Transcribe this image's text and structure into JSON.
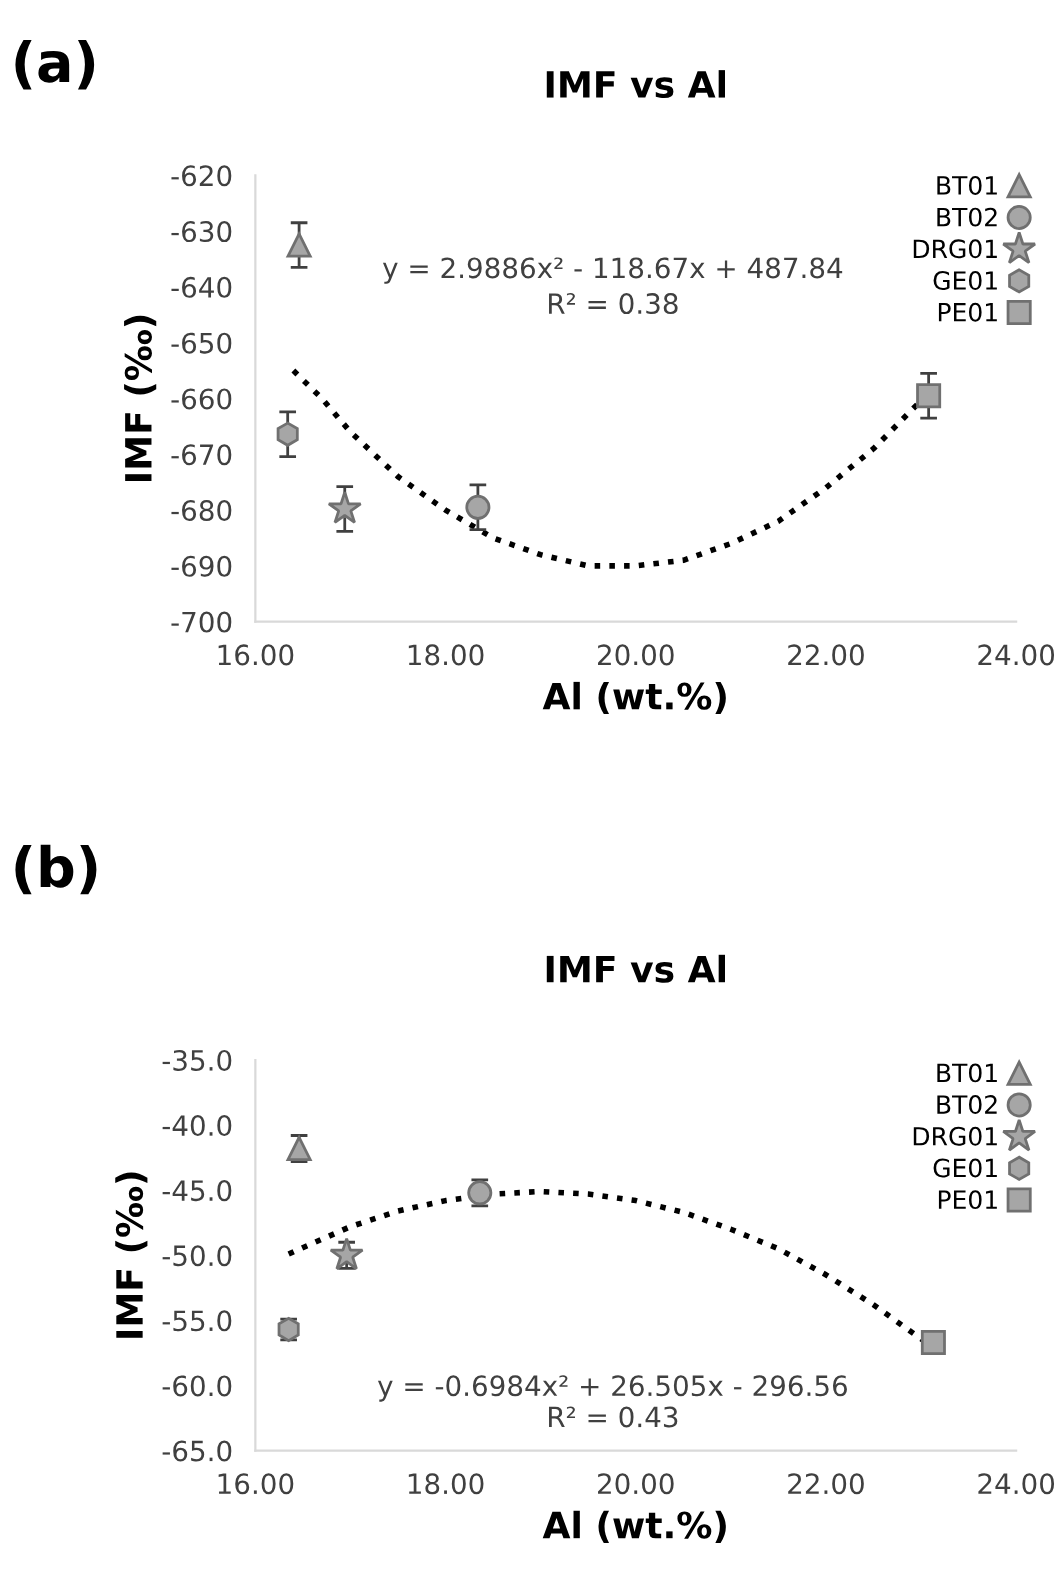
{
  "chart_data": [
    {
      "type": "scatter",
      "title": "IMF vs Al",
      "xlabel": "Al (wt.%)",
      "ylabel": "IMF (‰)",
      "annotations": [
        "(a)",
        "y = 2.9886x² - 118.67x + 487.84",
        "R² = 0.38"
      ],
      "xlim": [
        16,
        24
      ],
      "xticks": [
        {
          "value": 16,
          "label": "16.00"
        },
        {
          "value": 18,
          "label": "18.00"
        },
        {
          "value": 20,
          "label": "20.00"
        },
        {
          "value": 22,
          "label": "22.00"
        },
        {
          "value": 24,
          "label": "24.00"
        }
      ],
      "ylim": [
        -700,
        -620
      ],
      "yticks": [
        -700,
        -690,
        -680,
        -670,
        -660,
        -650,
        -640,
        -630,
        -620
      ],
      "grid": false,
      "legend": "top right",
      "series": [
        {
          "name": "BT01",
          "color": "#a6a6a6",
          "marker": "triangle",
          "x": [
            16.46
          ],
          "values": [
            -632.5
          ],
          "errors": [
            4
          ]
        },
        {
          "name": "BT02",
          "color": "#a6a6a6",
          "marker": "circle",
          "x": [
            18.34
          ],
          "values": [
            -679.5
          ],
          "errors": [
            4
          ]
        },
        {
          "name": "DRG01",
          "color": "#a6a6a6",
          "marker": "star",
          "x": [
            16.94
          ],
          "values": [
            -679.8
          ],
          "errors": [
            4
          ]
        },
        {
          "name": "GE01",
          "color": "#a6a6a6",
          "x": [
            16.34
          ],
          "values": [
            -666.4
          ],
          "errors": [
            4
          ]
        },
        {
          "name": "PE01",
          "color": "#a6a6a6",
          "marker": "square",
          "x": [
            23.08
          ],
          "values": [
            -659.5
          ],
          "errors": [
            4
          ]
        },
        {
          "type": "line",
          "color": "#000000",
          "line_style": "dotted",
          "marker": "none",
          "x": [
            16.4,
            16.7,
            17,
            17.5,
            18,
            18.5,
            19,
            19.5,
            20,
            20.5,
            21,
            21.5,
            22,
            22.5,
            23.08
          ],
          "values": [
            -655,
            -660,
            -666,
            -674,
            -680,
            -685,
            -688,
            -690,
            -690,
            -689,
            -686,
            -682,
            -676,
            -669,
            -659
          ]
        }
      ]
    },
    {
      "type": "scatter",
      "title": "IMF vs Al",
      "xlabel": "Al (wt.%)",
      "ylabel": "IMF (‰)",
      "annotations": [
        "(b)",
        "y = -0.6984x² + 26.505x - 296.56",
        "R² = 0.43"
      ],
      "xlim": [
        16,
        24
      ],
      "xticks": [
        {
          "value": 16,
          "label": "16.00"
        },
        {
          "value": 18,
          "label": "18.00"
        },
        {
          "value": 20,
          "label": "20.00"
        },
        {
          "value": 22,
          "label": "22.00"
        },
        {
          "value": 24,
          "label": "24.00"
        }
      ],
      "ylim": [
        -65,
        -35
      ],
      "yticks": [
        {
          "value": -65,
          "label": "-65.0"
        },
        {
          "value": -60,
          "label": "-60.0"
        },
        {
          "value": -55,
          "label": "-55.0"
        },
        {
          "value": -50,
          "label": "-50.0"
        },
        {
          "value": -45,
          "label": "-45.0"
        },
        {
          "value": -40,
          "label": "-40.0"
        },
        {
          "value": -35,
          "label": "-35.0"
        }
      ],
      "grid": false,
      "legend": "top right",
      "series": [
        {
          "name": "BT01",
          "color": "#a6a6a6",
          "marker": "triangle",
          "x": [
            16.46
          ],
          "values": [
            -41.8
          ],
          "errors": [
            1
          ]
        },
        {
          "name": "BT02",
          "color": "#a6a6a6",
          "marker": "circle",
          "x": [
            18.36
          ],
          "values": [
            -45.2
          ],
          "errors": [
            1
          ]
        },
        {
          "name": "DRG01",
          "color": "#a6a6a6",
          "marker": "star",
          "x": [
            16.96
          ],
          "values": [
            -50.0
          ],
          "errors": [
            1
          ]
        },
        {
          "name": "GE01",
          "color": "#a6a6a6",
          "x": [
            16.35
          ],
          "values": [
            -55.7
          ],
          "errors": [
            0.8
          ]
        },
        {
          "name": "PE01",
          "color": "#a6a6a6",
          "marker": "square",
          "x": [
            23.13
          ],
          "values": [
            -56.7
          ],
          "errors": [
            0.7
          ]
        },
        {
          "type": "line",
          "color": "#000000",
          "line_style": "dotted",
          "marker": "none",
          "x": [
            16.35,
            17,
            17.5,
            18,
            18.5,
            19,
            19.5,
            20,
            20.5,
            21,
            21.5,
            22,
            22.5,
            23.13
          ],
          "values": [
            -49.9,
            -47.8,
            -46.6,
            -45.8,
            -45.3,
            -45.1,
            -45.3,
            -45.8,
            -46.7,
            -48.0,
            -49.5,
            -51.5,
            -53.8,
            -57.1
          ]
        }
      ]
    }
  ]
}
